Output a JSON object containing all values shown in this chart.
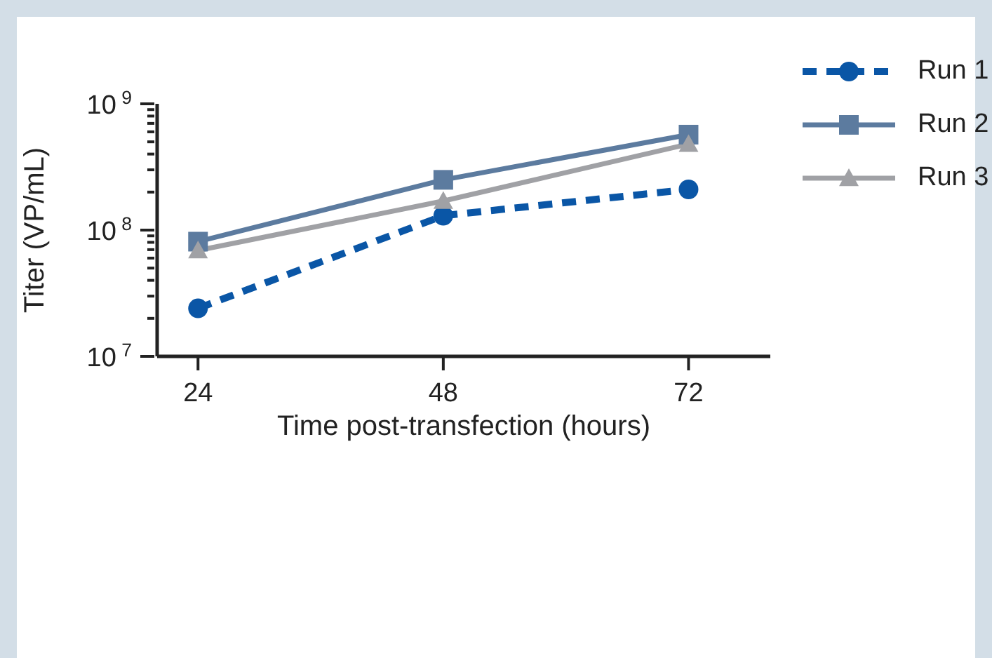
{
  "chart_data": {
    "type": "line",
    "xlabel": "Time post-transfection (hours)",
    "ylabel": "Titer (VP/mL)",
    "x": [
      24,
      48,
      72
    ],
    "xlim": [
      20,
      80
    ],
    "xticks": [
      24,
      48,
      72
    ],
    "ylim": [
      10000000,
      1000000000
    ],
    "log": "y",
    "yticks": [
      {
        "value": 10000000,
        "label": "10$^{7}$"
      },
      {
        "value": 20000000,
        "label": null
      },
      {
        "value": 30000000,
        "label": null
      },
      {
        "value": 40000000,
        "label": null
      },
      {
        "value": 50000000,
        "label": null
      },
      {
        "value": 60000000,
        "label": null
      },
      {
        "value": 70000000,
        "label": null
      },
      {
        "value": 80000000,
        "label": null
      },
      {
        "value": 90000000,
        "label": null
      },
      {
        "value": 100000000,
        "label": "10$^{8}$"
      },
      {
        "value": 200000000,
        "label": null
      },
      {
        "value": 300000000,
        "label": null
      },
      {
        "value": 400000000,
        "label": null
      },
      {
        "value": 500000000,
        "label": null
      },
      {
        "value": 600000000,
        "label": null
      },
      {
        "value": 700000000,
        "label": null
      },
      {
        "value": 800000000,
        "label": null
      },
      {
        "value": 900000000,
        "label": null
      },
      {
        "value": 1000000000,
        "label": "10$^{9}$"
      }
    ],
    "legend": "right",
    "series": [
      {
        "name": "Run 1",
        "color": "#0a56a6",
        "values": [
          24000000,
          130000000,
          210000000
        ],
        "marker": "circle",
        "line_style": "dashed"
      },
      {
        "name": "Run 2",
        "color": "#5c7b9f",
        "values": [
          81000000,
          250000000,
          570000000
        ],
        "marker": "square",
        "line_style": "solid"
      },
      {
        "name": "Run 3",
        "color": "#a0a1a5",
        "values": [
          69000000,
          170000000,
          480000000
        ],
        "marker": "triangle",
        "line_style": "solid"
      }
    ]
  }
}
